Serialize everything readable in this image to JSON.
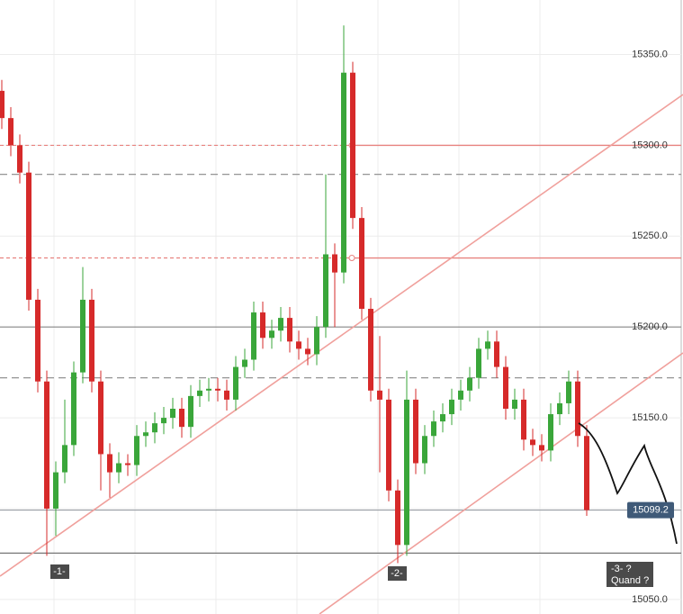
{
  "chart_data": {
    "type": "candlestick",
    "open": [
      15330,
      15315,
      15300,
      15285,
      15215,
      15170,
      15100,
      15120,
      15135,
      15175,
      15215,
      15170,
      15130,
      15120,
      15125,
      15124,
      15140,
      15142,
      15147,
      15150,
      15155,
      15145,
      15162,
      15165,
      15166,
      15165,
      15160,
      15178,
      15182,
      15208,
      15194,
      15198,
      15205,
      15192,
      15188,
      15185,
      15200,
      15240,
      15230,
      15340,
      15260,
      15210,
      15165,
      15160,
      15110,
      15080,
      15160,
      15125,
      15140,
      15148,
      15152,
      15160,
      15165,
      15172,
      15188,
      15192,
      15178,
      15155,
      15160,
      15138,
      15135,
      15132,
      15152,
      15158,
      15170,
      15140
    ],
    "high": [
      15336,
      15321,
      15306,
      15291,
      15221,
      15176,
      15126,
      15160,
      15181,
      15233,
      15221,
      15176,
      15136,
      15131,
      15130,
      15146,
      15148,
      15153,
      15156,
      15161,
      15161,
      15168,
      15171,
      15172,
      15172,
      15171,
      15184,
      15188,
      15214,
      15214,
      15204,
      15211,
      15211,
      15198,
      15194,
      15206,
      15284,
      15246,
      15366,
      15346,
      15266,
      15216,
      15195,
      15166,
      15116,
      15176,
      15166,
      15146,
      15154,
      15158,
      15166,
      15171,
      15178,
      15194,
      15198,
      15198,
      15184,
      15166,
      15166,
      15144,
      15141,
      15158,
      15164,
      15176,
      15176,
      15146
    ],
    "low": [
      15309,
      15294,
      15279,
      15209,
      15164,
      15074,
      15085,
      15114,
      15129,
      15169,
      15164,
      15110,
      15106,
      15114,
      15118,
      15118,
      15134,
      15136,
      15141,
      15144,
      15139,
      15139,
      15156,
      15159,
      15159,
      15154,
      15154,
      15172,
      15176,
      15188,
      15188,
      15192,
      15186,
      15182,
      15179,
      15179,
      15194,
      15200,
      15224,
      15254,
      15204,
      15159,
      15120,
      15104,
      15070,
      15074,
      15119,
      15119,
      15134,
      15142,
      15146,
      15154,
      15159,
      15166,
      15182,
      15172,
      15149,
      15149,
      15132,
      15129,
      15126,
      15126,
      15146,
      15152,
      15134,
      15096
    ],
    "close": [
      15315,
      15300,
      15285,
      15215,
      15170,
      15100,
      15120,
      15135,
      15175,
      15215,
      15170,
      15130,
      15120,
      15125,
      15124,
      15140,
      15142,
      15147,
      15150,
      15155,
      15145,
      15162,
      15165,
      15166,
      15165,
      15160,
      15178,
      15182,
      15208,
      15194,
      15198,
      15205,
      15192,
      15188,
      15185,
      15200,
      15240,
      15230,
      15340,
      15260,
      15210,
      15165,
      15160,
      15110,
      15080,
      15160,
      15125,
      15140,
      15148,
      15152,
      15160,
      15165,
      15172,
      15188,
      15192,
      15178,
      15155,
      15160,
      15138,
      15135,
      15132,
      15152,
      15158,
      15170,
      15140,
      15099.2
    ],
    "up_color": "#3aa63a",
    "down_color": "#d62a2a",
    "ylim": [
      15042,
      15380
    ],
    "yticks": [
      {
        "value": 15050,
        "label": "15050.0"
      },
      {
        "value": 15100,
        "label": "15100.0"
      },
      {
        "value": 15150,
        "label": "15150.0"
      },
      {
        "value": 15200,
        "label": "15200.0"
      },
      {
        "value": 15250,
        "label": "15250.0"
      },
      {
        "value": 15300,
        "label": "15300.0"
      },
      {
        "value": 15350,
        "label": "15350.0"
      }
    ],
    "grid": true,
    "last_price": {
      "value": 15099.2,
      "label": "15099.2"
    },
    "levels": [
      {
        "value": 15300,
        "color": "#e8827f",
        "style": "split"
      },
      {
        "value": 15238,
        "color": "#e8827f",
        "style": "split"
      },
      {
        "value": 15284,
        "color": "#888888",
        "style": "dashed"
      },
      {
        "value": 15172,
        "color": "#888888",
        "style": "dashed"
      },
      {
        "value": 15200,
        "color": "#888888",
        "style": "solid"
      },
      {
        "value": 15099.2,
        "color": "#9aa0a6",
        "style": "solid"
      },
      {
        "value": 15075.5,
        "color": "#777777",
        "style": "solid"
      }
    ],
    "annotations": [
      "-1-",
      "-2-",
      "-3- ?",
      "Quand ?"
    ]
  }
}
